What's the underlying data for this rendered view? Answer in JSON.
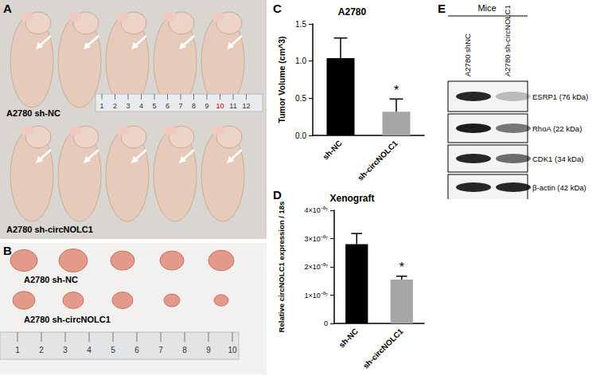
{
  "chart_data": [
    {
      "type": "bar",
      "title": "A2780",
      "y_label": "Tumor Volume (cm^3)",
      "categories": [
        "sh-NC",
        "sh-circNOLC1"
      ],
      "values": [
        1.04,
        0.32
      ],
      "errors": [
        0.27,
        0.17
      ],
      "colors": [
        "#000000",
        "#a6a6a6"
      ],
      "ylim": [
        0,
        1.5
      ],
      "yticks": [
        {
          "value": 0,
          "label": "0.0"
        },
        0.5,
        {
          "value": 1,
          "label": "1.0"
        },
        1.5
      ],
      "annotations": [
        {
          "text": "*",
          "category": "sh-circNOLC1"
        }
      ],
      "grid": false
    },
    {
      "type": "bar",
      "title": "Xenograft",
      "y_label": "Relative circNOLC1 expression / 18s",
      "categories": [
        "sh-NC",
        "sh-circNOLC1"
      ],
      "values": [
        2.8e-07,
        1.55e-07
      ],
      "errors": [
        3.8e-08,
        1.2e-08
      ],
      "colors": [
        "#000000",
        "#a6a6a6"
      ],
      "ylim": [
        0,
        4e-07
      ],
      "yticks": [
        0,
        {
          "value": 1e-07,
          "label": "1×10⁻⁰⁷"
        },
        {
          "value": 2e-07,
          "label": "2×10⁻⁰⁷"
        },
        {
          "value": 3e-07,
          "label": "3×10⁻⁰⁷"
        },
        {
          "value": 4e-07,
          "label": "4×10⁻⁰⁷"
        }
      ],
      "annotations": [
        {
          "text": "*",
          "category": "sh-circNOLC1"
        }
      ],
      "grid": false
    }
  ],
  "panel_labels": [
    "A",
    "B",
    "C",
    "D",
    "E"
  ],
  "photo_mice": {
    "groups": [
      "A2780 sh-NC",
      "A2780 sh-circNOLC1"
    ],
    "ruler": [
      1,
      2,
      3,
      4,
      5,
      6,
      7,
      8,
      9,
      10,
      11,
      12
    ]
  },
  "photo_tumors": {
    "groups": [
      "A2780 sh-NC",
      "A2780 sh-circNOLC1"
    ],
    "ruler": [
      1,
      2,
      3,
      4,
      5,
      6,
      7,
      8,
      9,
      10
    ]
  },
  "western_blot": {
    "header": "Mice",
    "lanes": [
      "A2780 shNC",
      "A2780 sh-circNOLC1"
    ],
    "bands": [
      "ESRP1 (76 kDa)",
      "RhoA (22 kDa)",
      "CDK1 (34 kDa)",
      "β-actin (42 kDa)"
    ]
  }
}
